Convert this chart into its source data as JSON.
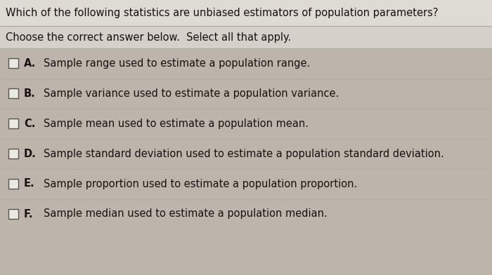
{
  "title": "Which of the following statistics are unbiased estimators of population parameters?",
  "subtitle": "Choose the correct answer below.  Select all that apply.",
  "options": [
    {
      "label": "A.",
      "text": "Sample range used to estimate a population range."
    },
    {
      "label": "B.",
      "text": "Sample variance used to estimate a population variance."
    },
    {
      "label": "C.",
      "text": "Sample mean used to estimate a population mean."
    },
    {
      "label": "D.",
      "text": "Sample standard deviation used to estimate a population standard deviation."
    },
    {
      "label": "E.",
      "text": "Sample proportion used to estimate a population proportion."
    },
    {
      "label": "F.",
      "text": "Sample median used to estimate a population median."
    }
  ],
  "bg_color": "#bdb5ac",
  "text_color": "#1a1010",
  "title_fontsize": 10.5,
  "subtitle_fontsize": 10.5,
  "option_fontsize": 10.5,
  "title_bg": "#dedad4",
  "subtitle_bg": "#d5d0ca",
  "line_color": "#aaa89f"
}
